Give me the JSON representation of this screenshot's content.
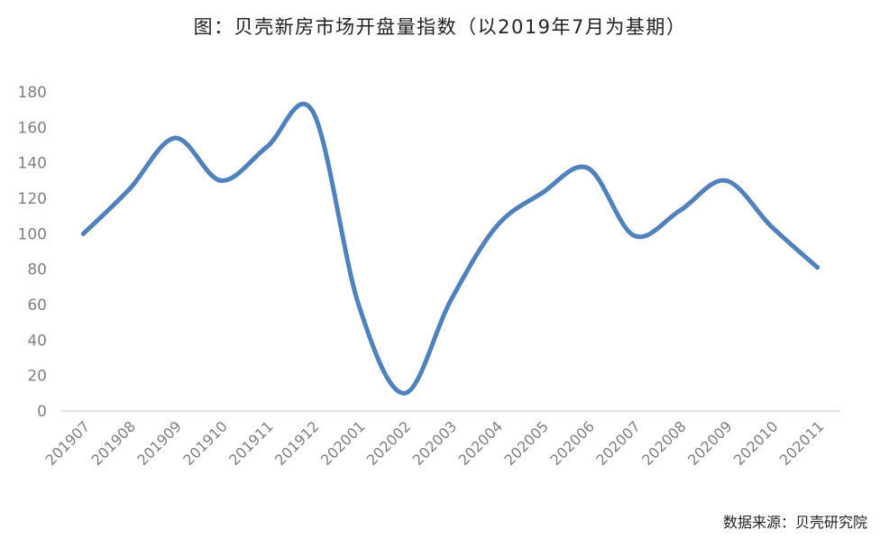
{
  "chart_data": {
    "type": "line",
    "title": "图：贝壳新房市场开盘量指数（以2019年7月为基期）",
    "source": "数据来源：贝壳研究院",
    "categories": [
      "201907",
      "201908",
      "201909",
      "201910",
      "201911",
      "201912",
      "202001",
      "202002",
      "202003",
      "202004",
      "202005",
      "202006",
      "202007",
      "202008",
      "202009",
      "202010",
      "202011"
    ],
    "series": [
      {
        "values": [
          100,
          125,
          154,
          130,
          149,
          169,
          60,
          10,
          62,
          104,
          123,
          137,
          99,
          113,
          130,
          104,
          81
        ]
      }
    ],
    "ylim": [
      0,
      180
    ],
    "yticks": [
      0,
      20,
      40,
      60,
      80,
      100,
      120,
      140,
      160,
      180
    ],
    "grid": false,
    "legend": "none",
    "colors": {
      "line": "#4f81bd",
      "axis": "#d9d9d9",
      "tick_text": "#7f7f7f"
    }
  }
}
